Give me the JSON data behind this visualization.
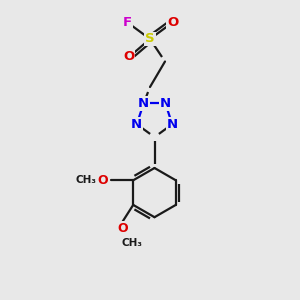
{
  "bg_color": "#e8e8e8",
  "bond_color": "#1a1a1a",
  "N_color": "#0000ee",
  "O_color": "#dd0000",
  "S_color": "#cccc00",
  "F_color": "#cc00cc",
  "line_width": 1.6,
  "figsize": [
    3.0,
    3.0
  ],
  "dpi": 100,
  "xlim": [
    2.5,
    7.5
  ],
  "ylim": [
    0.5,
    10.5
  ]
}
